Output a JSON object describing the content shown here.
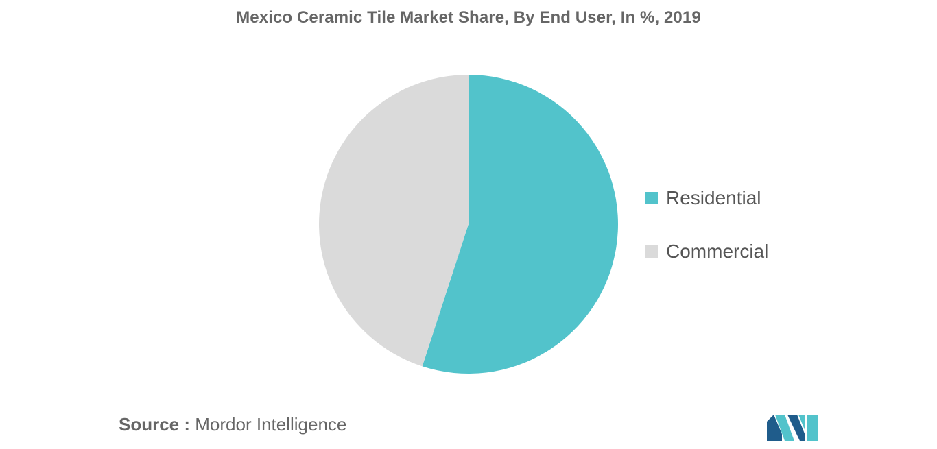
{
  "chart_data": {
    "type": "pie",
    "title": "Mexico Ceramic Tile Market Share, By End User, In %, 2019",
    "categories": [
      "Residential",
      "Commercial"
    ],
    "values": [
      55,
      45
    ],
    "colors": [
      "#52c3cb",
      "#dadada"
    ],
    "legend_position": "right"
  },
  "source": {
    "label": "Source :",
    "text": "Mordor Intelligence"
  },
  "logo": {
    "icon": "mordor-intelligence-logo-icon",
    "colors": [
      "#1f5c8b",
      "#52c3cb"
    ]
  }
}
